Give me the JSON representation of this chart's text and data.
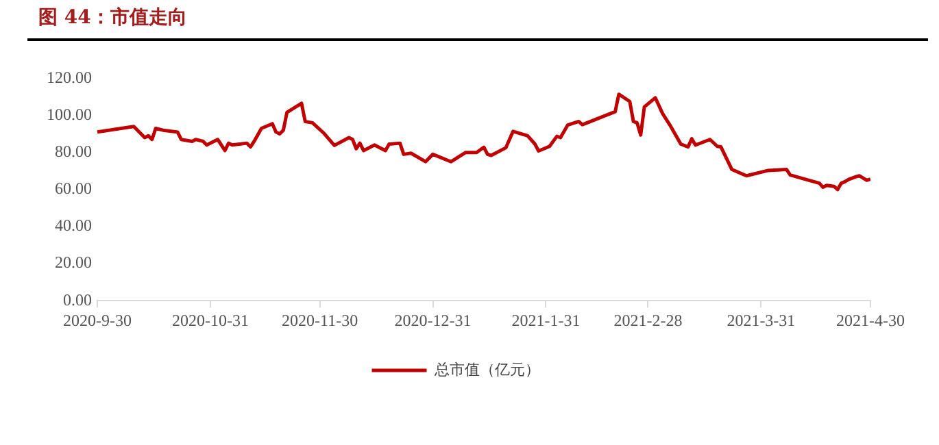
{
  "chart_data": {
    "type": "line",
    "title": "图 44：市值走向",
    "x": [
      "2020-09-30",
      "2020-10-10",
      "2020-10-13",
      "2020-10-14",
      "2020-10-15",
      "2020-10-16",
      "2020-10-18",
      "2020-10-22",
      "2020-10-23",
      "2020-10-26",
      "2020-10-27",
      "2020-10-29",
      "2020-10-30",
      "2020-11-02",
      "2020-11-04",
      "2020-11-05",
      "2020-11-06",
      "2020-11-10",
      "2020-11-11",
      "2020-11-12",
      "2020-11-14",
      "2020-11-17",
      "2020-11-18",
      "2020-11-19",
      "2020-11-20",
      "2020-11-21",
      "2020-11-25",
      "2020-11-26",
      "2020-11-28",
      "2020-12-01",
      "2020-12-04",
      "2020-12-08",
      "2020-12-09",
      "2020-12-10",
      "2020-12-11",
      "2020-12-12",
      "2020-12-15",
      "2020-12-18",
      "2020-12-19",
      "2020-12-22",
      "2020-12-23",
      "2020-12-25",
      "2020-12-29",
      "2020-12-31",
      "2021-01-05",
      "2021-01-09",
      "2021-01-12",
      "2021-01-14",
      "2021-01-15",
      "2021-01-16",
      "2021-01-20",
      "2021-01-22",
      "2021-01-26",
      "2021-01-28",
      "2021-01-29",
      "2021-02-01",
      "2021-02-03",
      "2021-02-04",
      "2021-02-06",
      "2021-02-09",
      "2021-02-10",
      "2021-02-19",
      "2021-02-20",
      "2021-02-23",
      "2021-02-24",
      "2021-02-25",
      "2021-02-26",
      "2021-02-27",
      "2021-03-02",
      "2021-03-04",
      "2021-03-06",
      "2021-03-09",
      "2021-03-11",
      "2021-03-12",
      "2021-03-13",
      "2021-03-17",
      "2021-03-19",
      "2021-03-20",
      "2021-03-23",
      "2021-03-27",
      "2021-04-02",
      "2021-04-07",
      "2021-04-08",
      "2021-04-16",
      "2021-04-17",
      "2021-04-18",
      "2021-04-20",
      "2021-04-21",
      "2021-04-22",
      "2021-04-23",
      "2021-04-24",
      "2021-04-26",
      "2021-04-27",
      "2021-04-29",
      "2021-04-30"
    ],
    "series": [
      {
        "name": "总市值（亿元）",
        "color": "#c00000",
        "values": [
          91,
          94,
          88,
          89,
          87,
          93,
          92,
          91,
          87,
          86,
          87,
          86,
          84,
          87,
          81,
          85,
          84,
          85,
          83,
          86,
          93,
          95.5,
          91,
          90,
          92,
          101.6,
          106.5,
          96.7,
          96,
          90.6,
          83.8,
          88,
          87,
          82,
          85,
          81,
          84,
          81,
          84.5,
          85,
          79,
          79.6,
          75,
          79,
          75,
          80,
          80,
          82.8,
          79,
          78.4,
          82.5,
          91.4,
          89,
          84.5,
          80.8,
          83.3,
          88.7,
          88,
          94.8,
          96.7,
          95,
          102,
          111.4,
          107.5,
          96.7,
          96,
          89.4,
          104.6,
          109.5,
          101,
          94.8,
          84.5,
          83,
          87.4,
          84,
          87,
          83.3,
          83,
          70.8,
          67.4,
          70.3,
          70.8,
          67.8,
          63.4,
          61.2,
          62.2,
          61.7,
          60,
          63.4,
          64.2,
          65.4,
          66.9,
          67.4,
          65,
          65.6
        ]
      }
    ],
    "xlim": [
      "2020-09-30",
      "2021-04-30"
    ],
    "xticks": [
      {
        "value": "2020-09-30",
        "label": "2020-9-30"
      },
      {
        "value": "2020-10-31",
        "label": "2020-10-31"
      },
      {
        "value": "2020-11-30",
        "label": "2020-11-30"
      },
      {
        "value": "2020-12-31",
        "label": "2020-12-31"
      },
      {
        "value": "2021-01-31",
        "label": "2021-1-31"
      },
      {
        "value": "2021-02-28",
        "label": "2021-2-28"
      },
      {
        "value": "2021-03-31",
        "label": "2021-3-31"
      },
      {
        "value": "2021-04-30",
        "label": "2021-4-30"
      }
    ],
    "ylim": [
      0,
      120
    ],
    "yticks": [
      {
        "value": 0,
        "label": "0.00"
      },
      {
        "value": 20,
        "label": "20.00"
      },
      {
        "value": 40,
        "label": "40.00"
      },
      {
        "value": 60,
        "label": "60.00"
      },
      {
        "value": 80,
        "label": "80.00"
      },
      {
        "value": 100,
        "label": "100.00"
      },
      {
        "value": 120,
        "label": "120.00"
      }
    ],
    "grid": false,
    "legend": "bottom",
    "marker": "none",
    "line_style": "solid"
  }
}
